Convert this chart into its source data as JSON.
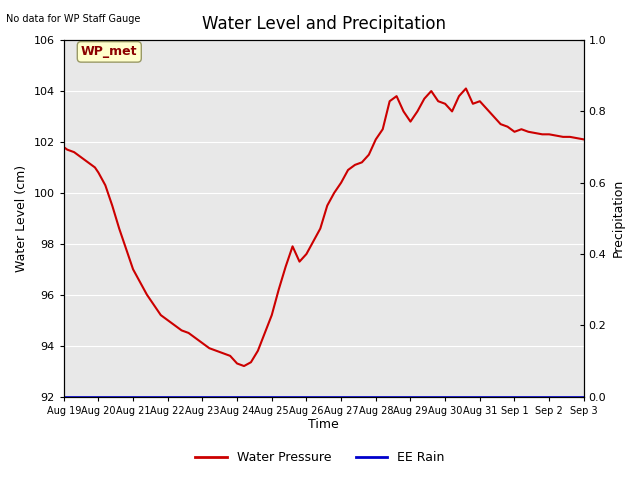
{
  "title": "Water Level and Precipitation",
  "top_left_text": "No data for WP Staff Gauge",
  "ylabel_left": "Water Level (cm)",
  "ylabel_right": "Precipitation",
  "xlabel": "Time",
  "ylim_left": [
    92,
    106
  ],
  "ylim_right": [
    0.0,
    1.0
  ],
  "yticks_left": [
    92,
    94,
    96,
    98,
    100,
    102,
    104,
    106
  ],
  "yticks_right": [
    0.0,
    0.2,
    0.4,
    0.6,
    0.8,
    1.0
  ],
  "x_tick_labels": [
    "Aug 19",
    "Aug 20",
    "Aug 21",
    "Aug 22",
    "Aug 23",
    "Aug 24",
    "Aug 25",
    "Aug 26",
    "Aug 27",
    "Aug 28",
    "Aug 29",
    "Aug 30",
    "Aug 31",
    "Sep 1",
    "Sep 2",
    "Sep 3"
  ],
  "line_color": "#cc0000",
  "rain_color": "#0000cc",
  "bg_color": "#e8e8e8",
  "legend_wp_label": "Water Pressure",
  "legend_rain_label": "EE Rain",
  "annotation_label": "WP_met",
  "annotation_color": "#8b0000",
  "annotation_bg": "#ffffcc",
  "x_days": [
    0,
    1,
    2,
    3,
    4,
    5,
    6,
    7,
    8,
    9,
    10,
    11,
    12,
    13,
    14,
    15
  ],
  "water_level_x": [
    0.0,
    0.1,
    0.3,
    0.5,
    0.7,
    0.9,
    1.0,
    1.2,
    1.4,
    1.6,
    1.8,
    2.0,
    2.2,
    2.4,
    2.6,
    2.8,
    3.0,
    3.2,
    3.4,
    3.6,
    3.8,
    4.0,
    4.2,
    4.4,
    4.6,
    4.8,
    5.0,
    5.2,
    5.4,
    5.6,
    5.8,
    6.0,
    6.2,
    6.4,
    6.6,
    6.8,
    7.0,
    7.2,
    7.4,
    7.6,
    7.8,
    8.0,
    8.2,
    8.4,
    8.6,
    8.8,
    9.0,
    9.2,
    9.4,
    9.6,
    9.8,
    10.0,
    10.2,
    10.4,
    10.6,
    10.8,
    11.0,
    11.2,
    11.4,
    11.6,
    11.8,
    12.0,
    12.2,
    12.4,
    12.6,
    12.8,
    13.0,
    13.2,
    13.4,
    13.6,
    13.8,
    14.0,
    14.2,
    14.4,
    14.6,
    14.8,
    15.0
  ],
  "water_level_y": [
    101.8,
    101.7,
    101.6,
    101.4,
    101.2,
    101.0,
    100.8,
    100.3,
    99.5,
    98.6,
    97.8,
    97.0,
    96.5,
    96.0,
    95.6,
    95.2,
    95.0,
    94.8,
    94.6,
    94.5,
    94.3,
    94.1,
    93.9,
    93.8,
    93.7,
    93.6,
    93.3,
    93.2,
    93.35,
    93.8,
    94.5,
    95.2,
    96.2,
    97.1,
    97.9,
    97.3,
    97.6,
    98.1,
    98.6,
    99.5,
    100.0,
    100.4,
    100.9,
    101.1,
    101.2,
    101.5,
    102.1,
    102.5,
    103.6,
    103.8,
    103.2,
    102.8,
    103.2,
    103.7,
    104.0,
    103.6,
    103.5,
    103.2,
    103.8,
    104.1,
    103.5,
    103.6,
    103.3,
    103.0,
    102.7,
    102.6,
    102.4,
    102.5,
    102.4,
    102.35,
    102.3,
    102.3,
    102.25,
    102.2,
    102.2,
    102.15,
    102.1
  ]
}
